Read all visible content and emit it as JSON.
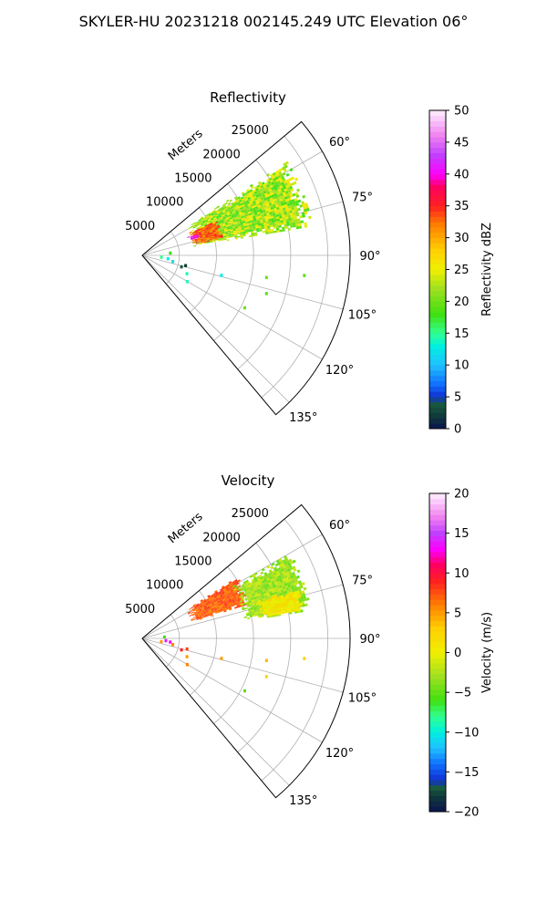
{
  "suptitle": "SKYLER-HU  20231218  002145.249 UTC Elevation 06°",
  "chart_data": [
    {
      "type": "polar-sector",
      "title": "Reflectivity",
      "range_label": "Meters",
      "theta_range_deg": [
        50,
        140
      ],
      "r_max_m": 28000,
      "r_ticks": [
        5000,
        10000,
        15000,
        20000,
        25000
      ],
      "r_tick_labels": [
        "5000",
        "10000",
        "15000",
        "20000",
        "25000"
      ],
      "theta_ticks": [
        60,
        75,
        90,
        105,
        120,
        135
      ],
      "theta_tick_labels": [
        "60°",
        "75°",
        "90°",
        "105°",
        "120°",
        "135°"
      ],
      "grid": true,
      "colorbar": {
        "label": "Reflectivity dBZ",
        "range": [
          0,
          50
        ],
        "ticks": [
          0,
          5,
          10,
          15,
          20,
          25,
          30,
          35,
          40,
          45,
          50
        ],
        "tick_labels": [
          "0",
          "5",
          "10",
          "15",
          "20",
          "25",
          "30",
          "35",
          "40",
          "45",
          "50"
        ],
        "stops": [
          {
            "v": 0,
            "c": "#0a1450"
          },
          {
            "v": 2,
            "c": "#0f3a3a"
          },
          {
            "v": 4,
            "c": "#1a5a40"
          },
          {
            "v": 5,
            "c": "#1030d0"
          },
          {
            "v": 7,
            "c": "#1070ff"
          },
          {
            "v": 10,
            "c": "#20c0ff"
          },
          {
            "v": 13,
            "c": "#00f0e0"
          },
          {
            "v": 15,
            "c": "#30ff90"
          },
          {
            "v": 18,
            "c": "#40e010"
          },
          {
            "v": 22,
            "c": "#a0e020"
          },
          {
            "v": 25,
            "c": "#f0f000"
          },
          {
            "v": 28,
            "c": "#ffd000"
          },
          {
            "v": 32,
            "c": "#ff8000"
          },
          {
            "v": 35,
            "c": "#ff2020"
          },
          {
            "v": 38,
            "c": "#ff0060"
          },
          {
            "v": 40,
            "c": "#ff00ff"
          },
          {
            "v": 43,
            "c": "#c040ff"
          },
          {
            "v": 46,
            "c": "#f080f0"
          },
          {
            "v": 50,
            "c": "#fff0ff"
          }
        ]
      },
      "echo_regions": [
        {
          "theta": [
            57,
            80
          ],
          "r": [
            7000,
            23000
          ],
          "value": 22,
          "spread": 9
        },
        {
          "theta": [
            64,
            78
          ],
          "r": [
            7000,
            11000
          ],
          "value": 33,
          "spread": 5
        },
        {
          "theta": [
            68,
            72
          ],
          "r": [
            6500,
            8000
          ],
          "value": 40,
          "spread": 3
        }
      ],
      "scattered_points": [
        {
          "theta": 97,
          "r": 3500,
          "value": 13
        },
        {
          "theta": 101,
          "r": 4200,
          "value": 12
        },
        {
          "theta": 103,
          "r": 6000,
          "value": 2
        },
        {
          "theta": 106,
          "r": 5500,
          "value": 4
        },
        {
          "theta": 112,
          "r": 6500,
          "value": 14
        },
        {
          "theta": 100,
          "r": 17000,
          "value": 20
        },
        {
          "theta": 107,
          "r": 17500,
          "value": 19
        },
        {
          "theta": 117,
          "r": 15500,
          "value": 20
        },
        {
          "theta": 97,
          "r": 22000,
          "value": 19
        },
        {
          "theta": 104,
          "r": 11000,
          "value": 13
        },
        {
          "theta": 120,
          "r": 7000,
          "value": 14
        },
        {
          "theta": 85,
          "r": 3800,
          "value": 18
        },
        {
          "theta": 95,
          "r": 2600,
          "value": 15
        }
      ]
    },
    {
      "type": "polar-sector",
      "title": "Velocity",
      "range_label": "Meters",
      "theta_range_deg": [
        50,
        140
      ],
      "r_max_m": 28000,
      "r_ticks": [
        5000,
        10000,
        15000,
        20000,
        25000
      ],
      "r_tick_labels": [
        "5000",
        "10000",
        "15000",
        "20000",
        "25000"
      ],
      "theta_ticks": [
        60,
        75,
        90,
        105,
        120,
        135
      ],
      "theta_tick_labels": [
        "60°",
        "75°",
        "90°",
        "105°",
        "120°",
        "135°"
      ],
      "grid": true,
      "colorbar": {
        "label": "Velocity (m/s)",
        "range": [
          -20,
          20
        ],
        "ticks": [
          -20,
          -15,
          -10,
          -5,
          0,
          5,
          10,
          15,
          20
        ],
        "tick_labels": [
          "−20",
          "−15",
          "−10",
          "−5",
          "0",
          "5",
          "10",
          "15",
          "20"
        ],
        "stops": [
          {
            "v": -20,
            "c": "#0a1450"
          },
          {
            "v": -18,
            "c": "#0f3a3a"
          },
          {
            "v": -17,
            "c": "#1a5a40"
          },
          {
            "v": -16,
            "c": "#1030d0"
          },
          {
            "v": -14,
            "c": "#1070ff"
          },
          {
            "v": -12,
            "c": "#20c0ff"
          },
          {
            "v": -10,
            "c": "#00f0e0"
          },
          {
            "v": -8,
            "c": "#30ff90"
          },
          {
            "v": -6,
            "c": "#40e010"
          },
          {
            "v": -3,
            "c": "#a0e020"
          },
          {
            "v": 0,
            "c": "#f0f000"
          },
          {
            "v": 3,
            "c": "#ffd000"
          },
          {
            "v": 6,
            "c": "#ff8000"
          },
          {
            "v": 9,
            "c": "#ff2020"
          },
          {
            "v": 11,
            "c": "#ff0060"
          },
          {
            "v": 13,
            "c": "#ff00ff"
          },
          {
            "v": 15,
            "c": "#c040ff"
          },
          {
            "v": 17,
            "c": "#f080f0"
          },
          {
            "v": 20,
            "c": "#fff0ff"
          }
        ]
      },
      "echo_regions": [
        {
          "theta": [
            57,
            72
          ],
          "r": [
            7000,
            15000
          ],
          "value": 7,
          "spread": 3
        },
        {
          "theta": [
            60,
            80
          ],
          "r": [
            14000,
            23000
          ],
          "value": -3,
          "spread": 4
        },
        {
          "theta": [
            72,
            80
          ],
          "r": [
            16000,
            22000
          ],
          "value": 1,
          "spread": 3
        }
      ],
      "scattered_points": [
        {
          "theta": 95,
          "r": 3200,
          "value": 14
        },
        {
          "theta": 97,
          "r": 3800,
          "value": 13
        },
        {
          "theta": 99,
          "r": 2600,
          "value": 5
        },
        {
          "theta": 101,
          "r": 4200,
          "value": 6
        },
        {
          "theta": 103,
          "r": 6200,
          "value": 8
        },
        {
          "theta": 106,
          "r": 5500,
          "value": 9
        },
        {
          "theta": 112,
          "r": 6500,
          "value": 5
        },
        {
          "theta": 100,
          "r": 17000,
          "value": 4
        },
        {
          "theta": 107,
          "r": 17500,
          "value": 3
        },
        {
          "theta": 117,
          "r": 15500,
          "value": -5
        },
        {
          "theta": 97,
          "r": 22000,
          "value": 3
        },
        {
          "theta": 104,
          "r": 11000,
          "value": 5
        },
        {
          "theta": 120,
          "r": 7000,
          "value": 6
        },
        {
          "theta": 86,
          "r": 3000,
          "value": -6
        }
      ]
    }
  ]
}
